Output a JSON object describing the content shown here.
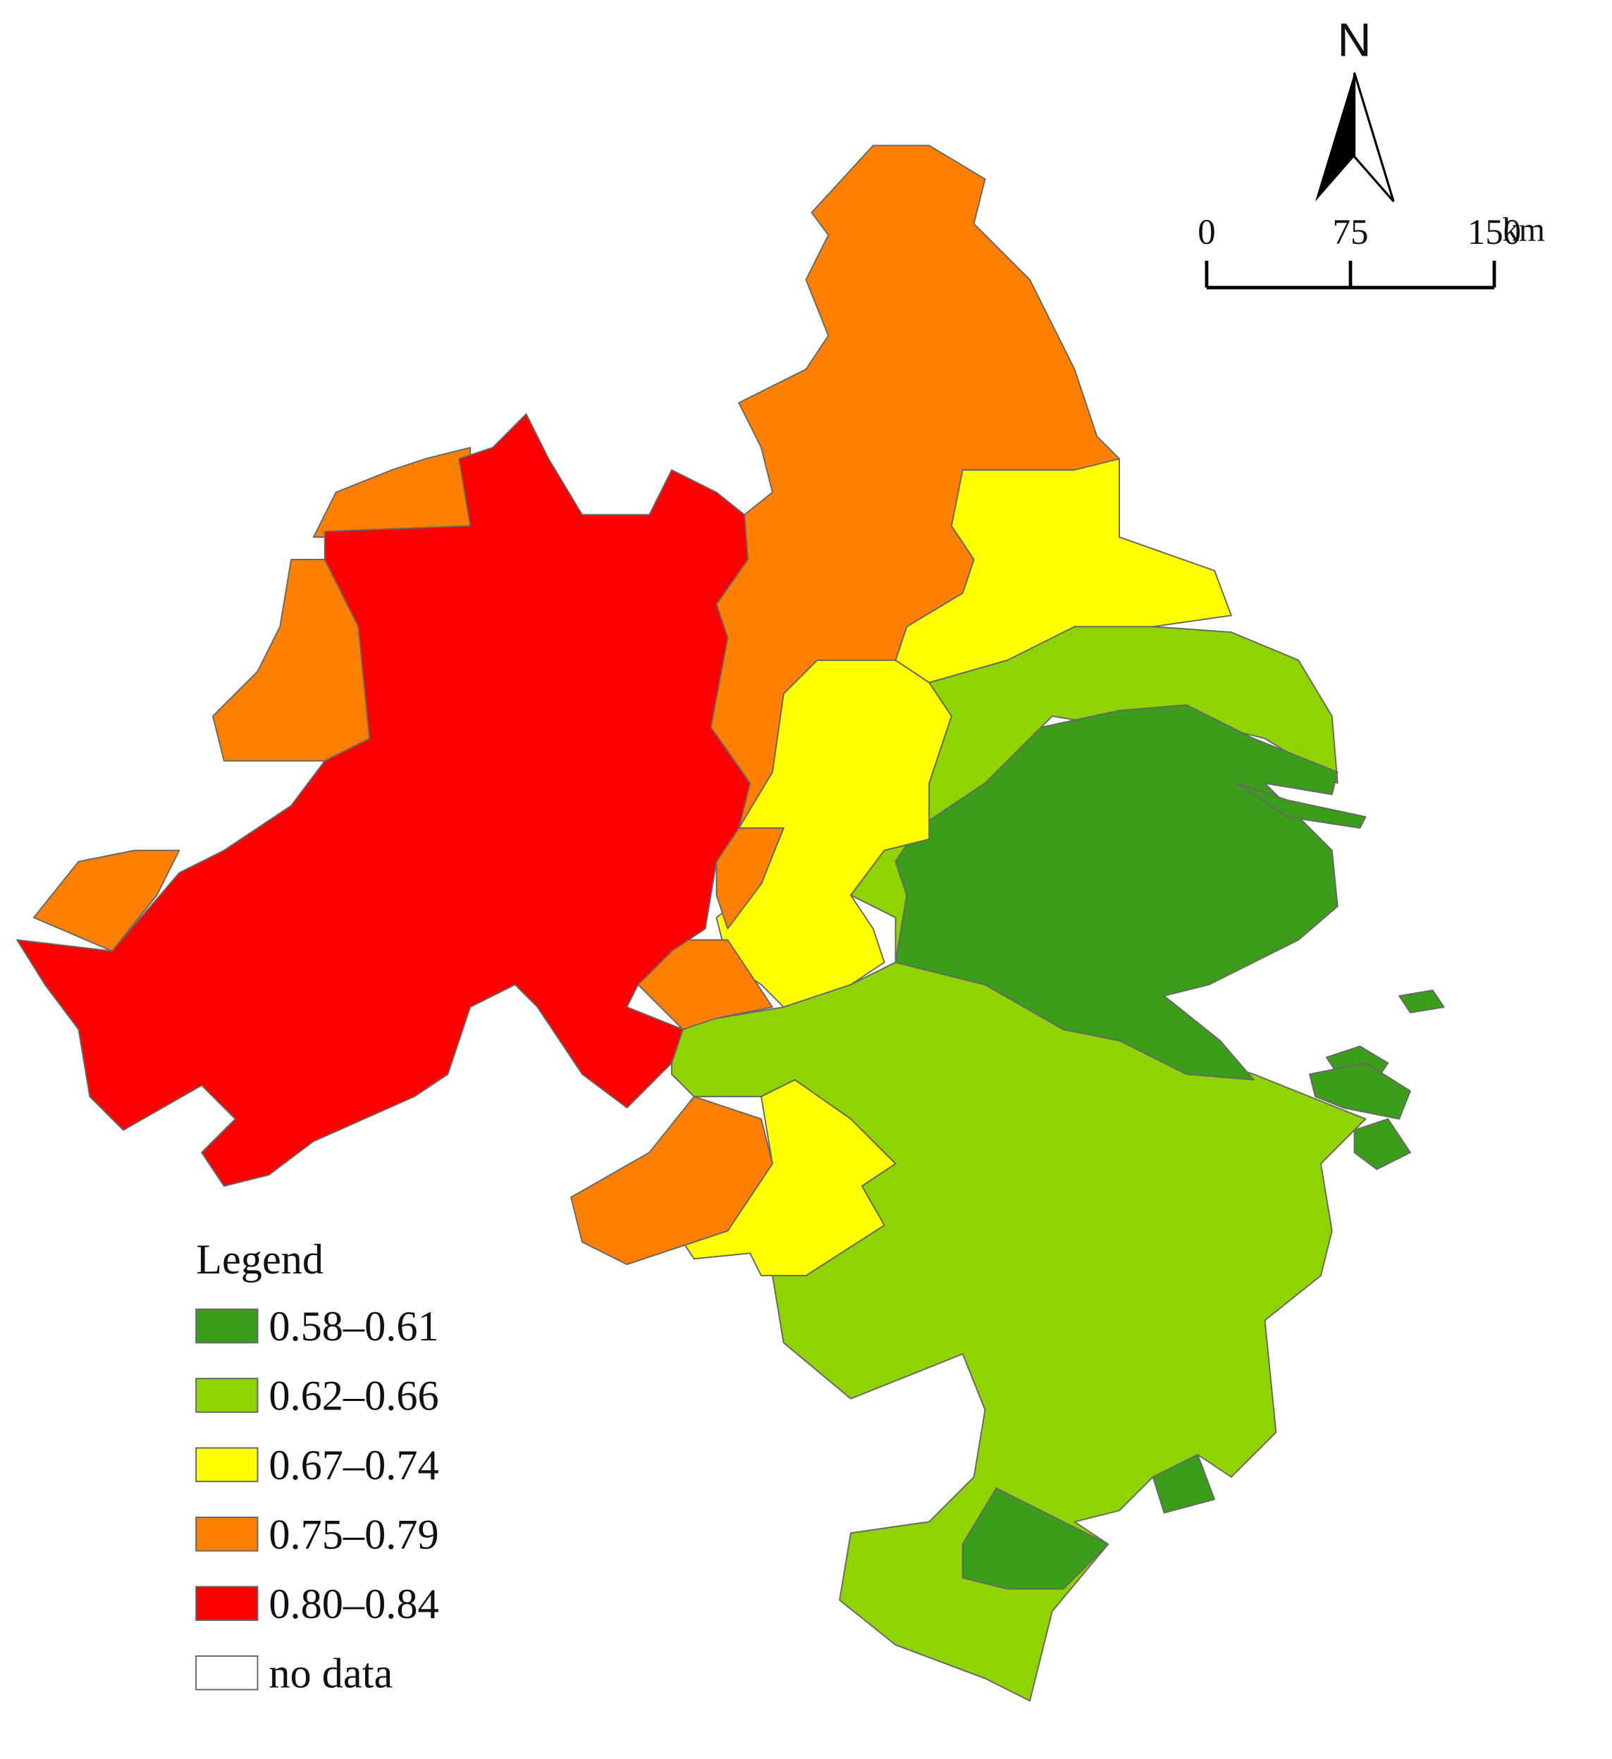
{
  "legend": {
    "title": "Legend",
    "items": [
      {
        "label": "0.58–0.61",
        "color": "#3a9e1a"
      },
      {
        "label": "0.62–0.66",
        "color": "#8fd400"
      },
      {
        "label": "0.67–0.74",
        "color": "#ffff00"
      },
      {
        "label": "0.75–0.79",
        "color": "#ff8000"
      },
      {
        "label": "0.80–0.84",
        "color": "#ff0000"
      },
      {
        "label": "no data",
        "color": "#ffffff"
      }
    ]
  },
  "north_arrow": {
    "label": "N"
  },
  "scale_bar": {
    "ticks": [
      0,
      75,
      150
    ],
    "unit": "km"
  }
}
